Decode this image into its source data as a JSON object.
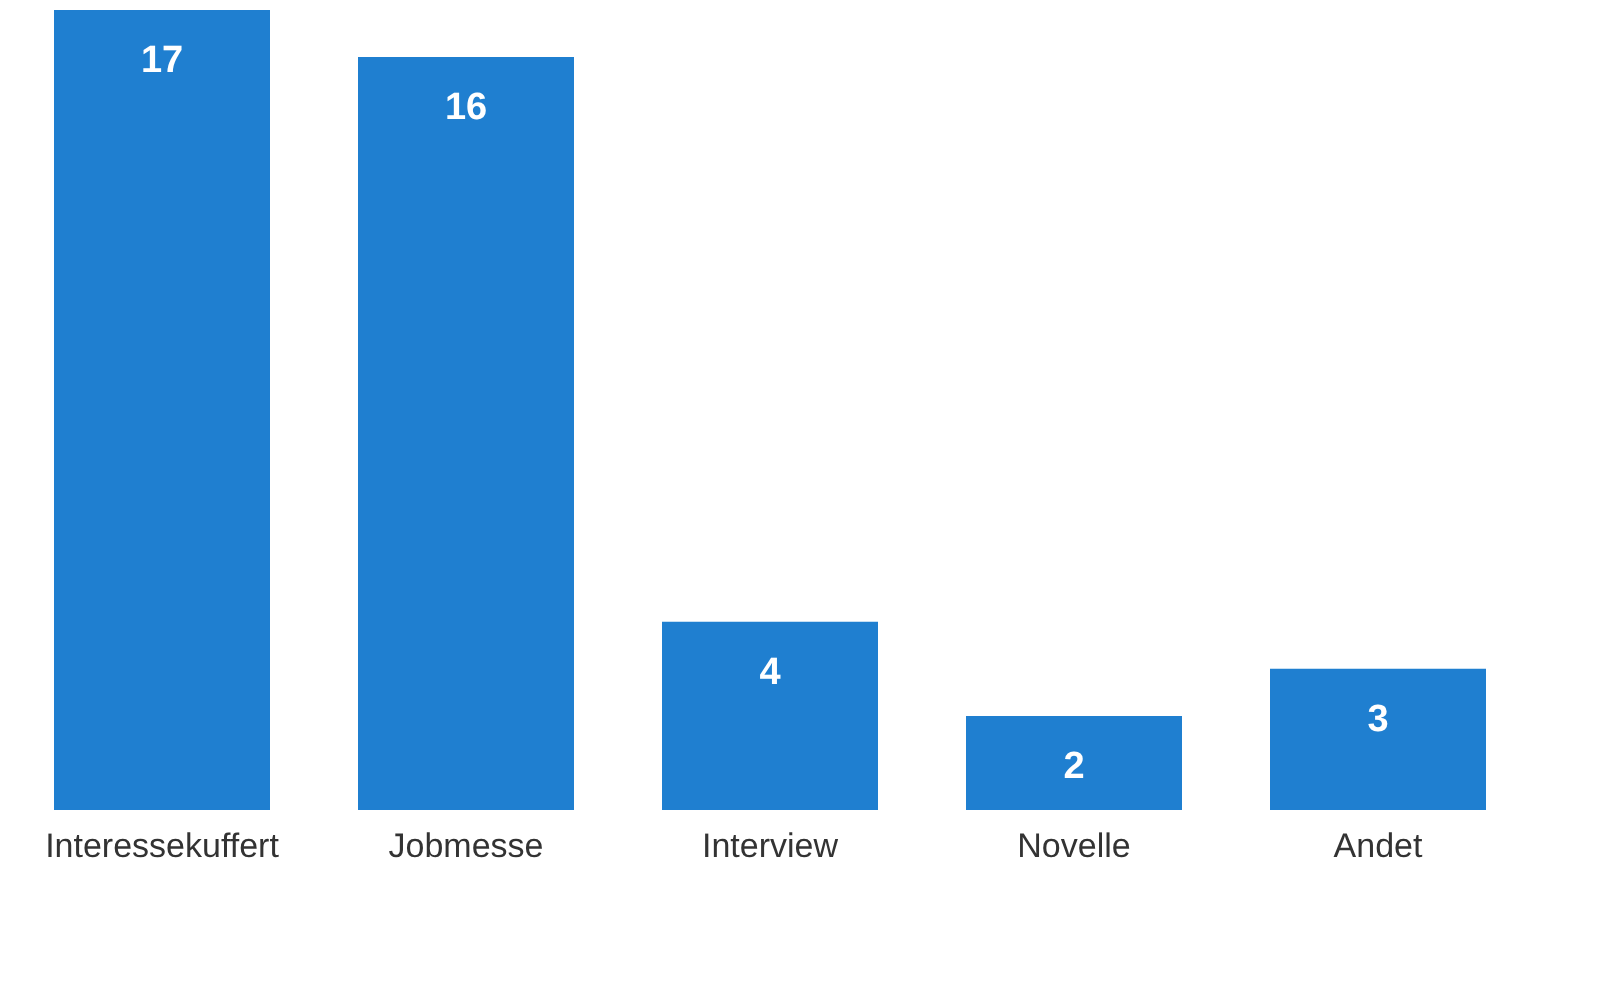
{
  "chart_data": {
    "type": "bar",
    "categories": [
      "Interessekuffert",
      "Jobmesse",
      "Interview",
      "Novelle",
      "Andet"
    ],
    "values": [
      17,
      16,
      4,
      2,
      3
    ],
    "color": "#1f7fd0",
    "data_labels": true,
    "grid": false
  }
}
